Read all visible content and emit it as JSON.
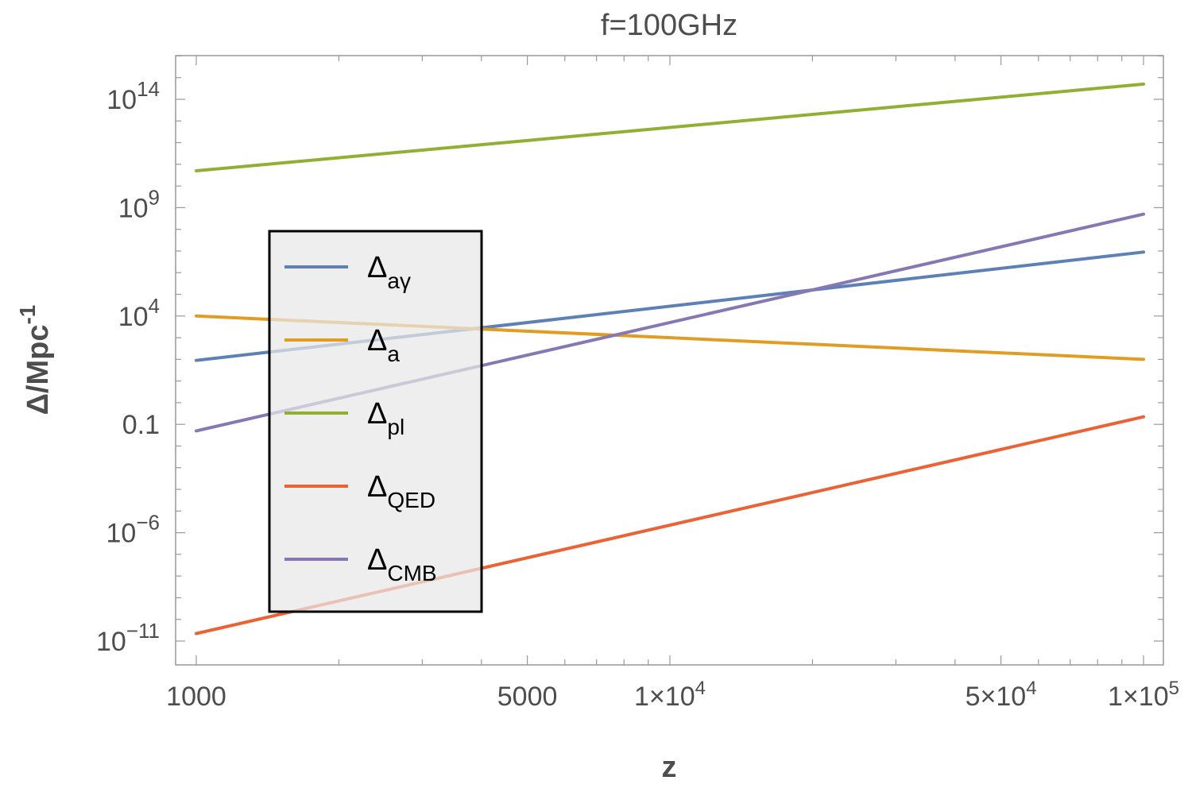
{
  "chart_data": {
    "type": "line",
    "title": "f=100GHz",
    "xlabel": "z",
    "ylabel": "Δ/Mpc",
    "ylabel_sup": "-1",
    "x_scale": "log",
    "y_scale": "log",
    "xlim": [
      890,
      120000
    ],
    "ylim_log10": [
      -11.5,
      16.3
    ],
    "x_ticks": [
      {
        "value": 1000,
        "label": "1000"
      },
      {
        "value": 5000,
        "label": "5000"
      },
      {
        "value": 10000,
        "label": "1×10",
        "sup": "4"
      },
      {
        "value": 50000,
        "label": "5×10",
        "sup": "4"
      },
      {
        "value": 100000,
        "label": "1×10",
        "sup": "5"
      }
    ],
    "y_ticks": [
      {
        "log10": 14,
        "label": "10",
        "sup": "14"
      },
      {
        "log10": 9,
        "label": "10",
        "sup": "9"
      },
      {
        "log10": 4,
        "label": "10",
        "sup": "4"
      },
      {
        "log10": -1,
        "label": "0.1",
        "sup": ""
      },
      {
        "log10": -6,
        "label": "10",
        "sup": "−6"
      },
      {
        "log10": -11,
        "label": "10",
        "sup": "−11"
      }
    ],
    "legend_position": "left-center",
    "series": [
      {
        "name": "Δ",
        "subscript": "aγ",
        "color": "#5e81b5",
        "x": [
          1000,
          100000
        ],
        "log10_y": [
          1.95,
          6.95
        ]
      },
      {
        "name": "Δ",
        "subscript": "a",
        "color": "#e19c24",
        "x": [
          1000,
          100000
        ],
        "log10_y": [
          4.0,
          2.0
        ]
      },
      {
        "name": "Δ",
        "subscript": "pl",
        "color": "#8fb032",
        "x": [
          1000,
          100000
        ],
        "log10_y": [
          10.7,
          14.7
        ]
      },
      {
        "name": "Δ",
        "subscript": "QED",
        "color": "#eb6235",
        "x": [
          1000,
          100000
        ],
        "log10_y": [
          -10.65,
          -0.65
        ]
      },
      {
        "name": "Δ",
        "subscript": "CMB",
        "color": "#8778b3",
        "x": [
          1000,
          100000
        ],
        "log10_y": [
          -1.3,
          8.7
        ]
      }
    ]
  }
}
